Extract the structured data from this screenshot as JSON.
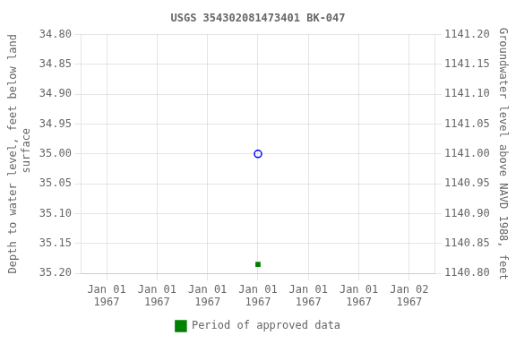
{
  "chart_data": {
    "type": "scatter",
    "title": "USGS 354302081473401 BK-047",
    "y_label": "Depth to water level, feet below land\n surface",
    "y2_label": "Groundwater level above NAVD 1988, feet",
    "categories": [
      "Jan 01\n1967",
      "Jan 01\n1967",
      "Jan 01\n1967",
      "Jan 01\n1967",
      "Jan 01\n1967",
      "Jan 01\n1967",
      "Jan 02\n1967"
    ],
    "series": [
      {
        "color": "#0000ff",
        "marker": "open_circle",
        "values": [
          null,
          null,
          null,
          35.0,
          null,
          null,
          null
        ]
      },
      {
        "name": "Period of approved data",
        "color": "#008000",
        "marker": "square",
        "values": [
          null,
          null,
          null,
          35.185,
          null,
          null,
          null
        ]
      }
    ],
    "ylim": [
      35.2,
      34.8
    ],
    "yticks": [
      {
        "value": 34.8,
        "label": "34.80"
      },
      {
        "value": 34.85,
        "label": "34.85"
      },
      {
        "value": 34.9,
        "label": "34.90"
      },
      {
        "value": 34.95,
        "label": "34.95"
      },
      {
        "value": 35.0,
        "label": "35.00"
      },
      {
        "value": 35.05,
        "label": "35.05"
      },
      {
        "value": 35.1,
        "label": "35.10"
      },
      {
        "value": 35.15,
        "label": "35.15"
      },
      {
        "value": 35.2,
        "label": "35.20"
      }
    ],
    "y2lim": [
      1140.8,
      1141.2
    ],
    "y2ticks": [
      {
        "value": 1141.2,
        "label": "1141.20"
      },
      {
        "value": 1141.15,
        "label": "1141.15"
      },
      {
        "value": 1141.1,
        "label": "1141.10"
      },
      {
        "value": 1141.05,
        "label": "1141.05"
      },
      {
        "value": 1141.0,
        "label": "1141.00"
      },
      {
        "value": 1140.95,
        "label": "1140.95"
      },
      {
        "value": 1140.9,
        "label": "1140.90"
      },
      {
        "value": 1140.85,
        "label": "1140.85"
      },
      {
        "value": 1140.8,
        "label": "1140.80"
      }
    ],
    "grid": true,
    "legend": "bottom"
  }
}
